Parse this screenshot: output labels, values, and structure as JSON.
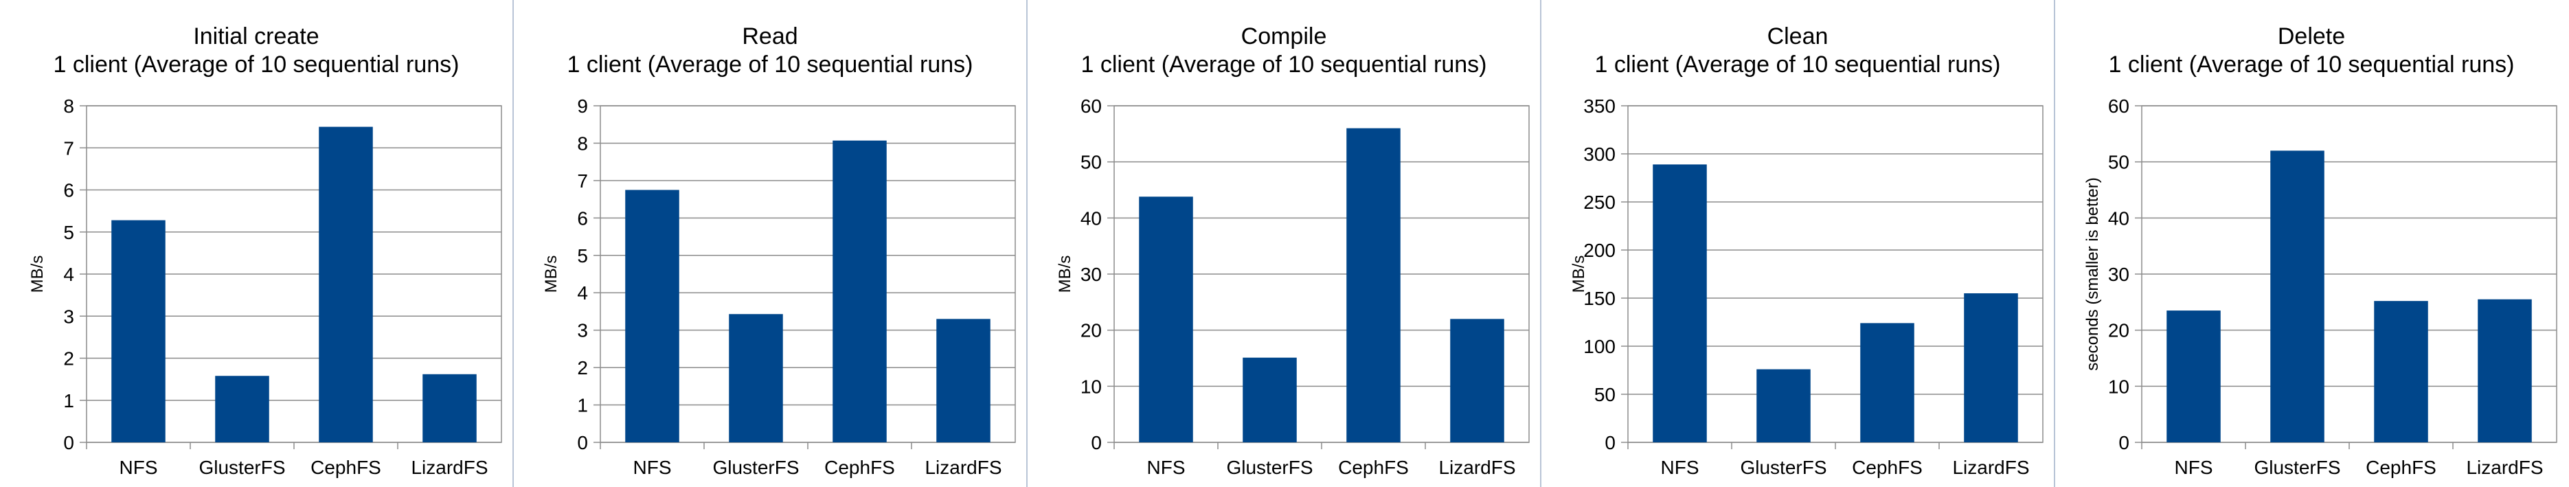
{
  "chart_data": [
    {
      "type": "bar",
      "title": "Initial create",
      "subtitle": "1 client (Average of 10 sequential runs)",
      "ylabel": "MB/s",
      "categories": [
        "NFS",
        "GlusterFS",
        "CephFS",
        "LizardFS"
      ],
      "values": [
        5.28,
        1.58,
        7.5,
        1.62
      ],
      "ylim": [
        0,
        8
      ],
      "yticks": [
        0,
        1,
        2,
        3,
        4,
        5,
        6,
        7,
        8
      ],
      "grid": true,
      "legend": "none",
      "bar_color": "#00468b"
    },
    {
      "type": "bar",
      "title": "Read",
      "subtitle": "1 client (Average of 10 sequential runs)",
      "ylabel": "MB/s",
      "categories": [
        "NFS",
        "GlusterFS",
        "CephFS",
        "LizardFS"
      ],
      "values": [
        6.75,
        3.43,
        8.07,
        3.3
      ],
      "ylim": [
        0,
        9
      ],
      "yticks": [
        0,
        1,
        2,
        3,
        4,
        5,
        6,
        7,
        8,
        9
      ],
      "grid": true,
      "legend": "none",
      "bar_color": "#00468b"
    },
    {
      "type": "bar",
      "title": "Compile",
      "subtitle": "1 client (Average of 10 sequential runs)",
      "ylabel": "MB/s",
      "categories": [
        "NFS",
        "GlusterFS",
        "CephFS",
        "LizardFS"
      ],
      "values": [
        43.8,
        15.1,
        56.0,
        22.0
      ],
      "ylim": [
        0,
        60
      ],
      "yticks": [
        0,
        10,
        20,
        30,
        40,
        50,
        60
      ],
      "grid": true,
      "legend": "none",
      "bar_color": "#00468b"
    },
    {
      "type": "bar",
      "title": "Clean",
      "subtitle": "1 client (Average of 10 sequential runs)",
      "ylabel": "MB/s",
      "categories": [
        "NFS",
        "GlusterFS",
        "CephFS",
        "LizardFS"
      ],
      "values": [
        289,
        76,
        124,
        155
      ],
      "ylim": [
        0,
        350
      ],
      "yticks": [
        0,
        50,
        100,
        150,
        200,
        250,
        300,
        350
      ],
      "grid": true,
      "legend": "none",
      "bar_color": "#00468b"
    },
    {
      "type": "bar",
      "title": "Delete",
      "subtitle": "1 client (Average of 10 sequential runs)",
      "ylabel": "seconds (smaller is better)",
      "categories": [
        "NFS",
        "GlusterFS",
        "CephFS",
        "LizardFS"
      ],
      "values": [
        23.5,
        52.0,
        25.2,
        25.5
      ],
      "ylim": [
        0,
        60
      ],
      "yticks": [
        0,
        10,
        20,
        30,
        40,
        50,
        60
      ],
      "grid": true,
      "legend": "none",
      "bar_color": "#00468b"
    }
  ]
}
